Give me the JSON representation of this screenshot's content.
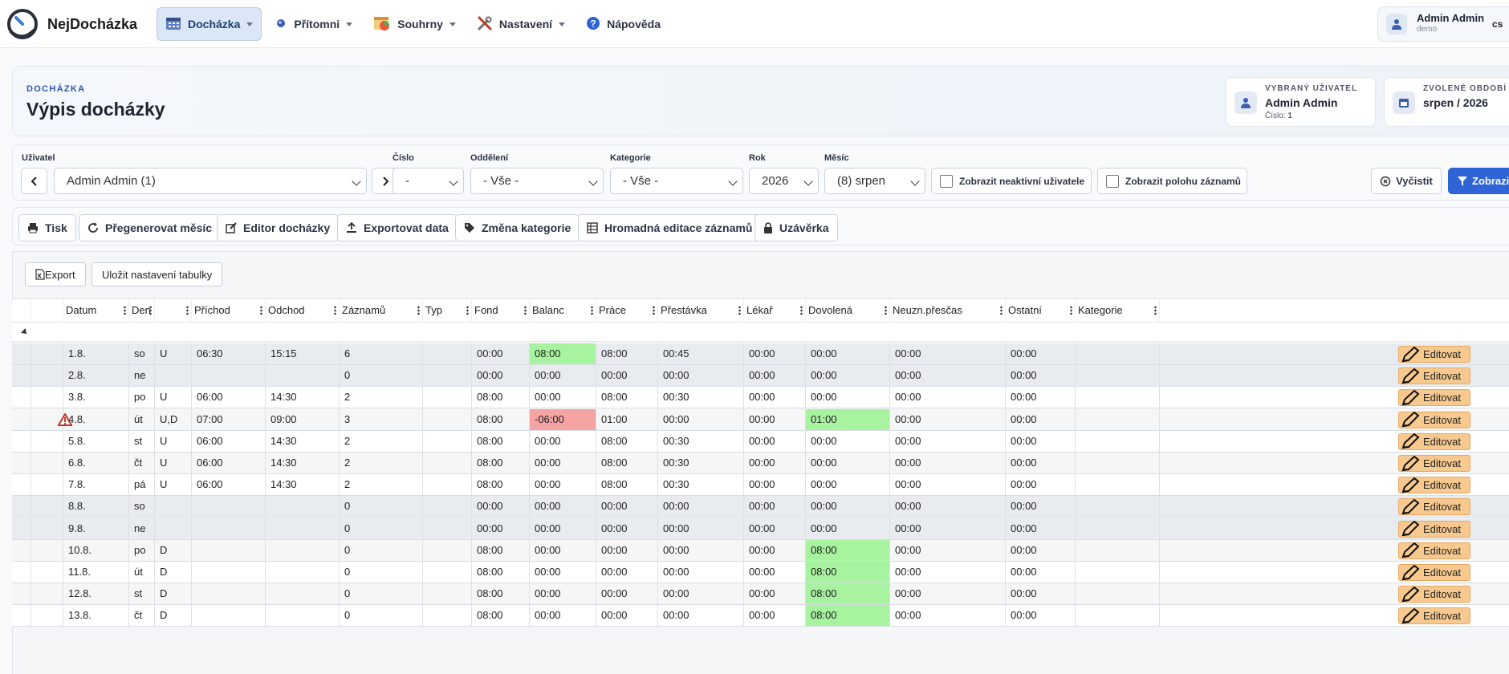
{
  "app": {
    "brand": "NejDocházka"
  },
  "nav": {
    "items": [
      {
        "label": "Docházka",
        "icon": "calendar-icon"
      },
      {
        "label": "Přítomni",
        "icon": "dot-icon"
      },
      {
        "label": "Souhrny",
        "icon": "chart-icon"
      },
      {
        "label": "Nastavení",
        "icon": "tools-icon"
      },
      {
        "label": "Nápověda",
        "icon": "help-icon"
      }
    ]
  },
  "user": {
    "name": "Admin Admin",
    "sub": "demo",
    "lang": "cs"
  },
  "header": {
    "eyebrow": "DOCHÁZKA",
    "title": "Výpis docházky"
  },
  "selected_user": {
    "label": "VYBRANÝ UŽIVATEL",
    "value": "Admin Admin",
    "number_label": "Číslo:",
    "number": "1"
  },
  "selected_period": {
    "label": "ZVOLENÉ OBDOBÍ",
    "value": "srpen / 2026"
  },
  "filters": {
    "user_label": "Uživatel",
    "user_value": "Admin Admin (1)",
    "number_label": "Číslo",
    "number_value": "-",
    "dept_label": "Oddělení",
    "dept_value": "- Vše -",
    "category_label": "Kategorie",
    "category_value": "- Vše -",
    "year_label": "Rok",
    "year_value": "2026",
    "month_label": "Měsíc",
    "month_value": "(8) srpen",
    "inactive_label": "Zobrazit neaktivní uživatele",
    "location_label": "Zobrazit polohu záznamů",
    "clear_label": "Vyčistit",
    "show_label": "Zobrazit"
  },
  "actions": {
    "print": "Tisk",
    "regenerate": "Přegenerovat měsíc",
    "editor": "Editor docházky",
    "export": "Exportovat data",
    "category_change": "Změna kategorie",
    "bulk_edit": "Hromadná editace záznamů",
    "closure": "Uzávěrka"
  },
  "table_toolbar": {
    "export": "Export",
    "save_settings": "Uložit nastavení tabulky"
  },
  "columns": [
    "Datum",
    "Den",
    "",
    "Příchod",
    "Odchod",
    "Záznamů",
    "Typ",
    "Fond",
    "Balanc",
    "Práce",
    "Přestávka",
    "Lékař",
    "Dovolená",
    "Neuzn.přesčas",
    "Ostatní",
    "Kategorie"
  ],
  "edit_label": "Editovat",
  "rows": [
    {
      "date": "1.8.",
      "day": "so",
      "type": "U",
      "arrive": "06:30",
      "leave": "15:15",
      "count": "6",
      "typ": "",
      "fund": "00:00",
      "balance": "08:00",
      "work": "08:00",
      "break": "00:45",
      "doctor": "00:00",
      "vacation": "00:00",
      "overtime": "00:00",
      "other": "00:00",
      "category": "",
      "weekend": true,
      "warn": false
    },
    {
      "date": "2.8.",
      "day": "ne",
      "type": "",
      "arrive": "",
      "leave": "",
      "count": "0",
      "typ": "",
      "fund": "00:00",
      "balance": "00:00",
      "work": "00:00",
      "break": "00:00",
      "doctor": "00:00",
      "vacation": "00:00",
      "overtime": "00:00",
      "other": "00:00",
      "category": "",
      "weekend": true,
      "warn": false
    },
    {
      "date": "3.8.",
      "day": "po",
      "type": "U",
      "arrive": "06:00",
      "leave": "14:30",
      "count": "2",
      "typ": "",
      "fund": "08:00",
      "balance": "00:00",
      "work": "08:00",
      "break": "00:30",
      "doctor": "00:00",
      "vacation": "00:00",
      "overtime": "00:00",
      "other": "00:00",
      "category": "",
      "weekend": false,
      "warn": false
    },
    {
      "date": "4.8.",
      "day": "út",
      "type": "U,D",
      "arrive": "07:00",
      "leave": "09:00",
      "count": "3",
      "typ": "",
      "fund": "08:00",
      "balance": "-06:00",
      "work": "01:00",
      "break": "00:00",
      "doctor": "00:00",
      "vacation": "01:00",
      "overtime": "00:00",
      "other": "00:00",
      "category": "",
      "weekend": false,
      "warn": true
    },
    {
      "date": "5.8.",
      "day": "st",
      "type": "U",
      "arrive": "06:00",
      "leave": "14:30",
      "count": "2",
      "typ": "",
      "fund": "08:00",
      "balance": "00:00",
      "work": "08:00",
      "break": "00:30",
      "doctor": "00:00",
      "vacation": "00:00",
      "overtime": "00:00",
      "other": "00:00",
      "category": "",
      "weekend": false,
      "warn": false
    },
    {
      "date": "6.8.",
      "day": "čt",
      "type": "U",
      "arrive": "06:00",
      "leave": "14:30",
      "count": "2",
      "typ": "",
      "fund": "08:00",
      "balance": "00:00",
      "work": "08:00",
      "break": "00:30",
      "doctor": "00:00",
      "vacation": "00:00",
      "overtime": "00:00",
      "other": "00:00",
      "category": "",
      "weekend": false,
      "warn": false
    },
    {
      "date": "7.8.",
      "day": "pá",
      "type": "U",
      "arrive": "06:00",
      "leave": "14:30",
      "count": "2",
      "typ": "",
      "fund": "08:00",
      "balance": "00:00",
      "work": "08:00",
      "break": "00:30",
      "doctor": "00:00",
      "vacation": "00:00",
      "overtime": "00:00",
      "other": "00:00",
      "category": "",
      "weekend": false,
      "warn": false
    },
    {
      "date": "8.8.",
      "day": "so",
      "type": "",
      "arrive": "",
      "leave": "",
      "count": "0",
      "typ": "",
      "fund": "00:00",
      "balance": "00:00",
      "work": "00:00",
      "break": "00:00",
      "doctor": "00:00",
      "vacation": "00:00",
      "overtime": "00:00",
      "other": "00:00",
      "category": "",
      "weekend": true,
      "warn": false
    },
    {
      "date": "9.8.",
      "day": "ne",
      "type": "",
      "arrive": "",
      "leave": "",
      "count": "0",
      "typ": "",
      "fund": "00:00",
      "balance": "00:00",
      "work": "00:00",
      "break": "00:00",
      "doctor": "00:00",
      "vacation": "00:00",
      "overtime": "00:00",
      "other": "00:00",
      "category": "",
      "weekend": true,
      "warn": false
    },
    {
      "date": "10.8.",
      "day": "po",
      "type": "D",
      "arrive": "",
      "leave": "",
      "count": "0",
      "typ": "",
      "fund": "08:00",
      "balance": "00:00",
      "work": "00:00",
      "break": "00:00",
      "doctor": "00:00",
      "vacation": "08:00",
      "overtime": "00:00",
      "other": "00:00",
      "category": "",
      "weekend": false,
      "warn": false
    },
    {
      "date": "11.8.",
      "day": "út",
      "type": "D",
      "arrive": "",
      "leave": "",
      "count": "0",
      "typ": "",
      "fund": "08:00",
      "balance": "00:00",
      "work": "00:00",
      "break": "00:00",
      "doctor": "00:00",
      "vacation": "08:00",
      "overtime": "00:00",
      "other": "00:00",
      "category": "",
      "weekend": false,
      "warn": false
    },
    {
      "date": "12.8.",
      "day": "st",
      "type": "D",
      "arrive": "",
      "leave": "",
      "count": "0",
      "typ": "",
      "fund": "08:00",
      "balance": "00:00",
      "work": "00:00",
      "break": "00:00",
      "doctor": "00:00",
      "vacation": "08:00",
      "overtime": "00:00",
      "other": "00:00",
      "category": "",
      "weekend": false,
      "warn": false
    },
    {
      "date": "13.8.",
      "day": "čt",
      "type": "D",
      "arrive": "",
      "leave": "",
      "count": "0",
      "typ": "",
      "fund": "08:00",
      "balance": "00:00",
      "work": "00:00",
      "break": "00:00",
      "doctor": "00:00",
      "vacation": "08:00",
      "overtime": "00:00",
      "other": "00:00",
      "category": "",
      "weekend": false,
      "warn": false
    }
  ],
  "colors": {
    "accent": "#2f64d6",
    "positive": "#a7f3a0",
    "negative": "#f5a3a3",
    "edit": "#f7c98f",
    "weekend_row": "#e8ecf1"
  }
}
